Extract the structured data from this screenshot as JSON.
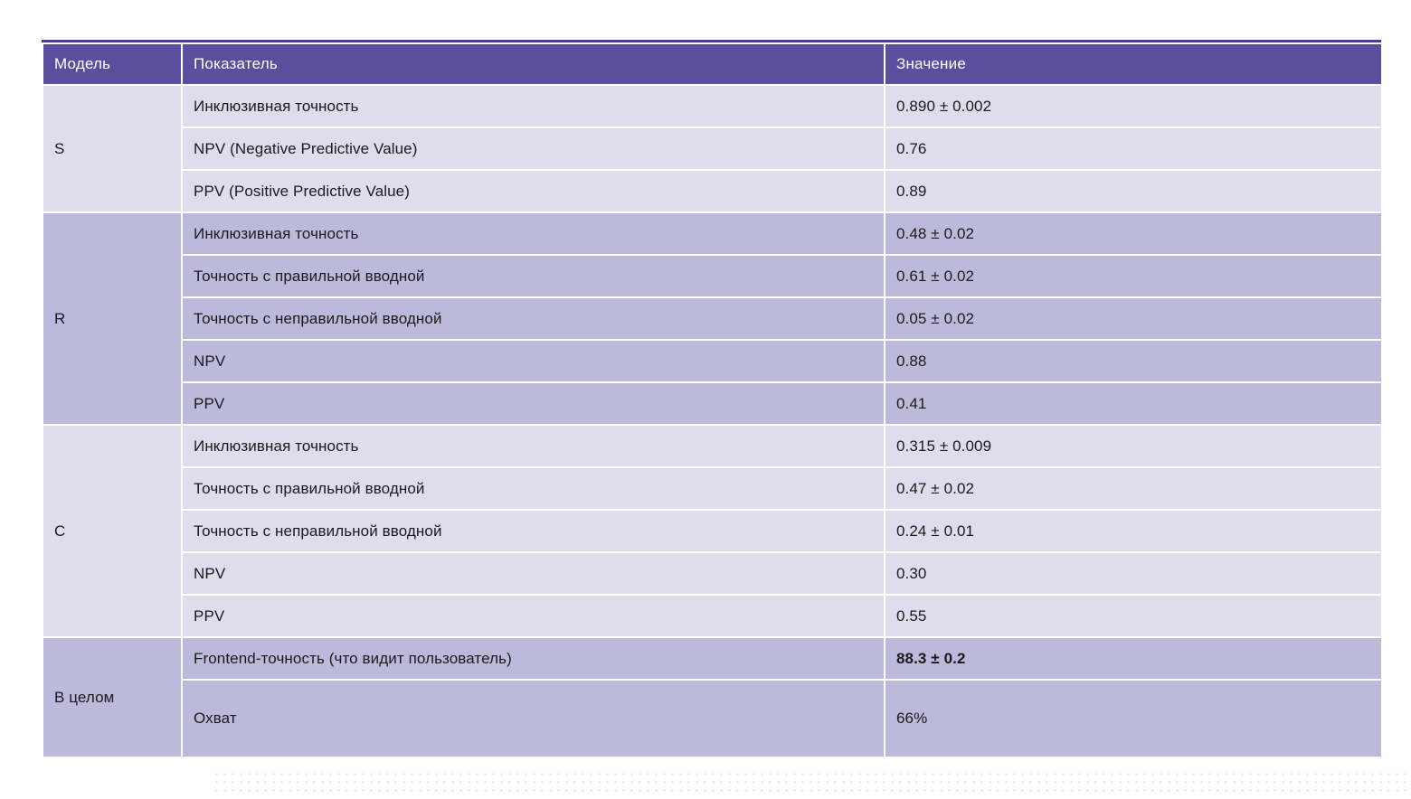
{
  "table": {
    "header": {
      "model": "Модель",
      "metric": "Показатель",
      "value": "Значение"
    },
    "colors": {
      "header_bg": "#5b4e9e",
      "header_text": "#ffffff",
      "row_light": "#dfdcec",
      "row_medium": "#bdb9da",
      "top_border": "#4b3f8e",
      "body_text": "#1a1a1a",
      "page_bg": "#ffffff"
    },
    "groups": [
      {
        "model": "S",
        "shade": "light",
        "rows": [
          {
            "metric": "Инклюзивная точность",
            "value": "0.890 ± 0.002"
          },
          {
            "metric": "NPV (Negative Predictive Value)",
            "value": "0.76"
          },
          {
            "metric": "PPV (Positive Predictive Value)",
            "value": "0.89"
          }
        ]
      },
      {
        "model": "R",
        "shade": "medium",
        "rows": [
          {
            "metric": "Инклюзивная точность",
            "value": "0.48 ± 0.02"
          },
          {
            "metric": "Точность с правильной вводной",
            "value": "0.61 ± 0.02"
          },
          {
            "metric": "Точность с неправильной вводной",
            "value": "0.05 ± 0.02"
          },
          {
            "metric": "NPV",
            "value": "0.88"
          },
          {
            "metric": "PPV",
            "value": "0.41"
          }
        ]
      },
      {
        "model": "C",
        "shade": "light",
        "rows": [
          {
            "metric": "Инклюзивная точность",
            "value": "0.315 ± 0.009"
          },
          {
            "metric": "Точность с правильной вводной",
            "value": "0.47 ± 0.02"
          },
          {
            "metric": "Точность с неправильной вводной",
            "value": "0.24 ± 0.01"
          },
          {
            "metric": "NPV",
            "value": "0.30"
          },
          {
            "metric": "PPV",
            "value": "0.55"
          }
        ]
      },
      {
        "model": "В целом",
        "shade": "medium",
        "rows": [
          {
            "metric": "Frontend-точность (что видит пользователь)",
            "value": "88.3 ± 0.2",
            "value_bold": true
          },
          {
            "metric": "Охват",
            "value": "66%",
            "tall": true
          }
        ]
      }
    ]
  }
}
